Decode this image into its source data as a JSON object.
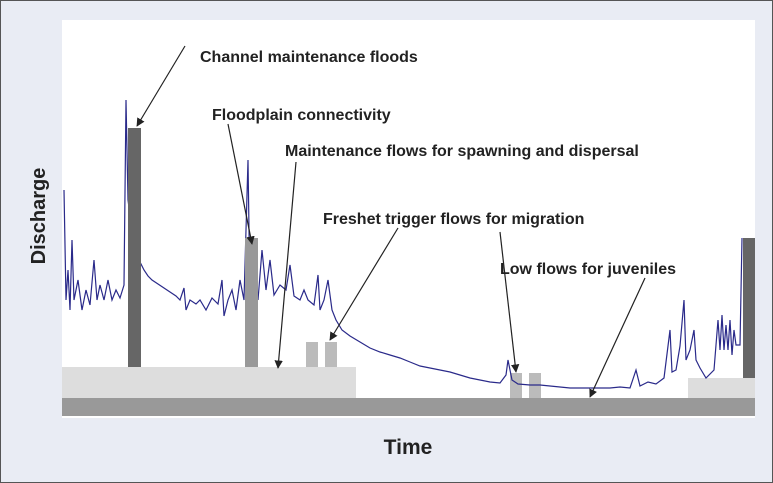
{
  "y_axis_label": "Discharge",
  "x_axis_label": "Time",
  "annotations": [
    "Channel maintenance floods",
    "Floodplain connectivity",
    "Maintenance flows for spawning and dispersal",
    "Freshet trigger flows for migration",
    "Low flows for juveniles"
  ]
}
